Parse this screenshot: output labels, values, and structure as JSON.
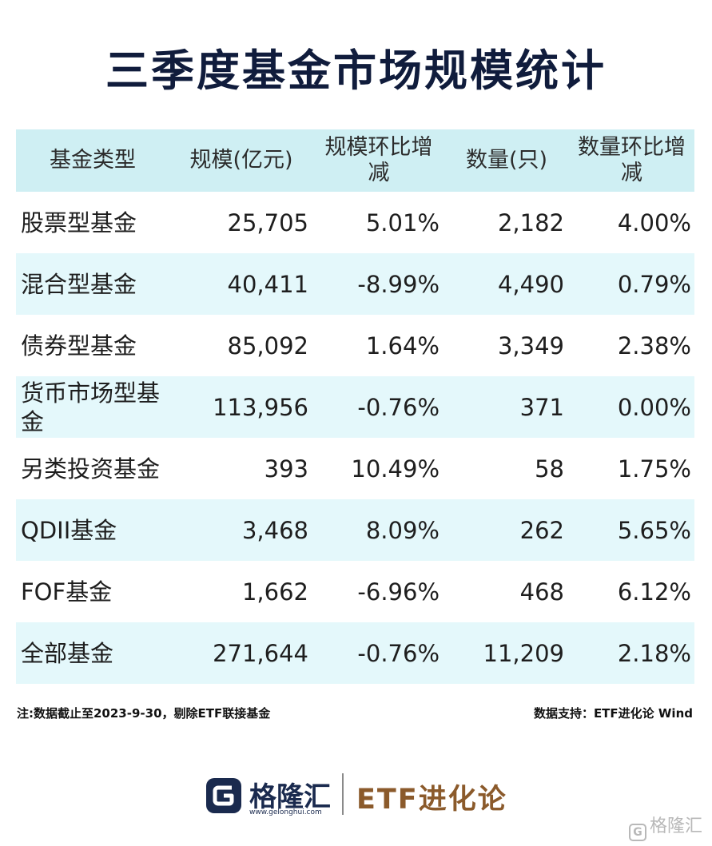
{
  "title": "三季度基金市场规模统计",
  "table": {
    "headers": [
      "基金类型",
      "规模(亿元)",
      "规模环比增减",
      "数量(只)",
      "数量环比增减"
    ],
    "rows": [
      [
        "股票型基金",
        "25,705",
        "5.01%",
        "2,182",
        "4.00%"
      ],
      [
        "混合型基金",
        "40,411",
        "-8.99%",
        "4,490",
        "0.79%"
      ],
      [
        "债券型基金",
        "85,092",
        "1.64%",
        "3,349",
        "2.38%"
      ],
      [
        "货币市场型基金",
        "113,956",
        "-0.76%",
        "371",
        "0.00%"
      ],
      [
        "另类投资基金",
        "393",
        "10.49%",
        "58",
        "1.75%"
      ],
      [
        "QDII基金",
        "3,468",
        "8.09%",
        "262",
        "5.65%"
      ],
      [
        "FOF基金",
        "1,662",
        "-6.96%",
        "468",
        "6.12%"
      ],
      [
        "全部基金",
        "271,644",
        "-0.76%",
        "11,209",
        "2.18%"
      ]
    ]
  },
  "footnote": "注:数据截止至2023-9-30，剔除ETF联接基金",
  "source": "数据支持：ETF进化论 Wind",
  "logo": {
    "brand": "格隆汇",
    "url": "www.gelonghui.com",
    "partner": "ETF进化论"
  },
  "watermark": "格隆汇",
  "colors": {
    "header_bg": "#cfeff3",
    "stripe_bg": "#e4f8fb",
    "title": "#101c3c",
    "partner_logo": "#8b5a2b"
  }
}
